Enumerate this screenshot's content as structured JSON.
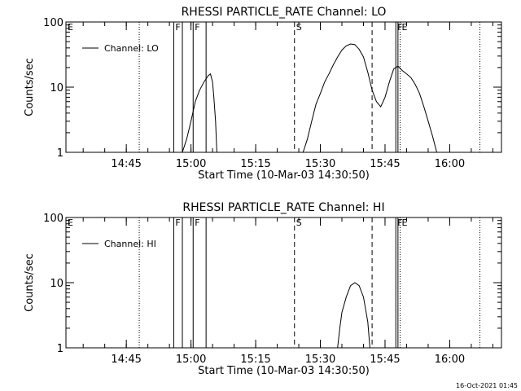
{
  "footer": {
    "timestamp": "16-Oct-2021 01:45"
  },
  "chart_data": [
    {
      "type": "line",
      "title": "RHESSI PARTICLE_RATE Channel: LO",
      "xlabel": "Start Time (10-Mar-03 14:30:50)",
      "ylabel": "Counts/sec",
      "yscale": "log",
      "ylim": [
        1,
        100
      ],
      "xlim": [
        "14:31",
        "16:12"
      ],
      "x_ticks": [
        "14:45",
        "15:00",
        "15:15",
        "15:30",
        "15:45",
        "16:00"
      ],
      "y_ticks": [
        "1",
        "10",
        "100"
      ],
      "legend": {
        "position": "top-left",
        "entries": [
          "Channel: LO"
        ]
      },
      "series": [
        {
          "name": "Channel: LO",
          "points": [
            [
              "14:58",
              1
            ],
            [
              "14:59",
              1.6
            ],
            [
              "15:00",
              3
            ],
            [
              "15:01",
              6
            ],
            [
              "15:02",
              9
            ],
            [
              "15:03",
              12
            ],
            [
              "15:04",
              15
            ],
            [
              "15:04.5",
              16
            ],
            [
              "15:05",
              12
            ],
            [
              "15:05.3",
              7
            ],
            [
              "15:05.7",
              3
            ],
            [
              "15:06",
              1
            ],
            null,
            [
              "15:26",
              1
            ],
            [
              "15:27",
              1.6
            ],
            [
              "15:28",
              3
            ],
            [
              "15:29",
              5.5
            ],
            [
              "15:30",
              8
            ],
            [
              "15:31",
              12
            ],
            [
              "15:32",
              16
            ],
            [
              "15:33",
              22
            ],
            [
              "15:34",
              29
            ],
            [
              "15:35",
              37
            ],
            [
              "15:36",
              43
            ],
            [
              "15:37",
              46
            ],
            [
              "15:38",
              45
            ],
            [
              "15:39",
              38
            ],
            [
              "15:40",
              29
            ],
            [
              "15:41",
              17
            ],
            [
              "15:42",
              9
            ],
            [
              "15:43",
              6
            ],
            [
              "15:44",
              5
            ],
            [
              "15:45",
              7
            ],
            [
              "15:46",
              12
            ],
            [
              "15:47",
              19
            ],
            [
              "15:48",
              21
            ],
            [
              "15:49",
              18
            ],
            [
              "15:50",
              16
            ],
            [
              "15:51",
              14
            ],
            [
              "15:52",
              11
            ],
            [
              "15:53",
              8
            ],
            [
              "15:54",
              5
            ],
            [
              "15:55",
              3
            ],
            [
              "15:56",
              1.8
            ],
            [
              "15:57",
              1
            ]
          ]
        }
      ],
      "annotations": [
        {
          "label": "E",
          "time": "14:31",
          "line": "none"
        },
        {
          "label": "",
          "time": "14:48",
          "line": "dotted"
        },
        {
          "label": "F",
          "time": "14:56",
          "line": "solid"
        },
        {
          "label": "",
          "time": "14:58",
          "line": "solid"
        },
        {
          "label": "F",
          "time": "15:00.5",
          "line": "solid"
        },
        {
          "label": "",
          "time": "15:03.5",
          "line": "solid"
        },
        {
          "label": "S",
          "time": "15:24",
          "line": "dashed"
        },
        {
          "label": "",
          "time": "15:42",
          "line": "dashed"
        },
        {
          "label": "F",
          "time": "15:47.5",
          "line": "solid"
        },
        {
          "label": "",
          "time": "15:48",
          "line": "solid"
        },
        {
          "label": "E",
          "time": "15:48.5",
          "line": "dotted"
        },
        {
          "label": "",
          "time": "16:07",
          "line": "dotted"
        }
      ]
    },
    {
      "type": "line",
      "title": "RHESSI PARTICLE_RATE Channel: HI",
      "xlabel": "Start Time (10-Mar-03 14:30:50)",
      "ylabel": "Counts/sec",
      "yscale": "log",
      "ylim": [
        1,
        100
      ],
      "xlim": [
        "14:31",
        "16:12"
      ],
      "x_ticks": [
        "14:45",
        "15:00",
        "15:15",
        "15:30",
        "15:45",
        "16:00"
      ],
      "y_ticks": [
        "1",
        "10",
        "100"
      ],
      "legend": {
        "position": "top-left",
        "entries": [
          "Channel: HI"
        ]
      },
      "series": [
        {
          "name": "Channel: HI",
          "points": [
            [
              "15:34",
              1
            ],
            [
              "15:34.5",
              2
            ],
            [
              "15:35",
              3.5
            ],
            [
              "15:36",
              6
            ],
            [
              "15:37",
              9
            ],
            [
              "15:38",
              10
            ],
            [
              "15:39",
              9
            ],
            [
              "15:40",
              6
            ],
            [
              "15:41",
              2.5
            ],
            [
              "15:41.5",
              1
            ]
          ]
        }
      ],
      "annotations": [
        {
          "label": "E",
          "time": "14:31",
          "line": "none"
        },
        {
          "label": "",
          "time": "14:48",
          "line": "dotted"
        },
        {
          "label": "F",
          "time": "14:56",
          "line": "solid"
        },
        {
          "label": "",
          "time": "14:58",
          "line": "solid"
        },
        {
          "label": "F",
          "time": "15:00.5",
          "line": "solid"
        },
        {
          "label": "",
          "time": "15:03.5",
          "line": "solid"
        },
        {
          "label": "S",
          "time": "15:24",
          "line": "dashed"
        },
        {
          "label": "",
          "time": "15:42",
          "line": "dashed"
        },
        {
          "label": "F",
          "time": "15:47.5",
          "line": "solid"
        },
        {
          "label": "",
          "time": "15:48",
          "line": "solid"
        },
        {
          "label": "E",
          "time": "15:48.5",
          "line": "dotted"
        },
        {
          "label": "",
          "time": "16:07",
          "line": "dotted"
        }
      ]
    }
  ]
}
